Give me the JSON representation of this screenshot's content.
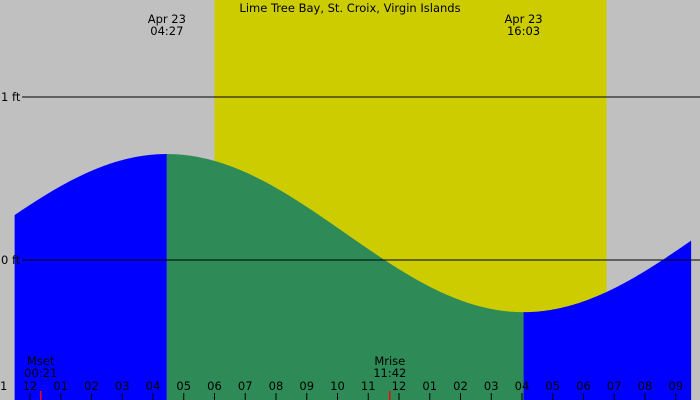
{
  "chart_data": {
    "type": "area",
    "title": "Lime Tree Bay, St. Croix, Virgin Islands",
    "xlabel": "",
    "ylabel": "",
    "x_unit": "hour",
    "xlim": [
      0.5,
      22.5
    ],
    "ylim": [
      -0.25,
      1.29
    ],
    "y_gridlines": [
      {
        "value": 1,
        "label": "1 ft"
      },
      {
        "value": 0,
        "label": "0 ft"
      }
    ],
    "x_ticks": [
      {
        "x": 1,
        "label": "12"
      },
      {
        "x": 2,
        "label": "01"
      },
      {
        "x": 3,
        "label": "02"
      },
      {
        "x": 4,
        "label": "03"
      },
      {
        "x": 5,
        "label": "04"
      },
      {
        "x": 6,
        "label": "05"
      },
      {
        "x": 7,
        "label": "06"
      },
      {
        "x": 8,
        "label": "07"
      },
      {
        "x": 9,
        "label": "08"
      },
      {
        "x": 10,
        "label": "09"
      },
      {
        "x": 11,
        "label": "10"
      },
      {
        "x": 12,
        "label": "11"
      },
      {
        "x": 13,
        "label": "12"
      },
      {
        "x": 14,
        "label": "01"
      },
      {
        "x": 15,
        "label": "02"
      },
      {
        "x": 16,
        "label": "03"
      },
      {
        "x": 17,
        "label": "04"
      },
      {
        "x": 18,
        "label": "05"
      },
      {
        "x": 19,
        "label": "06"
      },
      {
        "x": 20,
        "label": "07"
      },
      {
        "x": 21,
        "label": "08"
      },
      {
        "x": 22,
        "label": "09"
      }
    ],
    "x_ticks_edge_label": "1",
    "tide_events": [
      {
        "date": "Apr 23",
        "time": "04:27",
        "x": 5.45
      },
      {
        "date": "Apr 23",
        "time": "16:03",
        "x": 17.05
      }
    ],
    "moon_events": [
      {
        "label": "Mset",
        "time": "00:21",
        "x": 1.35
      },
      {
        "label": "Mrise",
        "time": "11:42",
        "x": 12.7
      }
    ],
    "daylight": {
      "start": 7.0,
      "end": 19.75
    },
    "tide_extremes": [
      {
        "x": 5.45,
        "y": 0.65
      },
      {
        "x": 17.05,
        "y": -0.32
      }
    ],
    "flood_periods": [
      [
        0.5,
        5.45
      ],
      [
        17.05,
        22.5
      ]
    ],
    "ebb_periods": [
      [
        5.45,
        17.05
      ]
    ],
    "series": [
      {
        "x": [
          0.5,
          1,
          2,
          3,
          4,
          5,
          5.45,
          6,
          7,
          8,
          9,
          10,
          11,
          12,
          13,
          14,
          15,
          16,
          17,
          17.05,
          18,
          19,
          20,
          21,
          22,
          22.5
        ],
        "y": [
          0.37,
          0.42,
          0.51,
          0.58,
          0.62,
          0.648,
          0.65,
          0.65,
          0.6,
          0.52,
          0.43,
          0.33,
          0.22,
          0.1,
          -0.01,
          -0.11,
          -0.2,
          -0.27,
          -0.32,
          -0.32,
          -0.31,
          -0.27,
          -0.2,
          -0.12,
          -0.03,
          0.1
        ]
      }
    ],
    "colors": {
      "background": "#c0c0c0",
      "daylight": "#cccc00",
      "flood": "#0000ff",
      "ebb": "#2e8b57",
      "gridline": "#000000",
      "moon_marker": "#ff0000",
      "text": "#000000"
    }
  }
}
